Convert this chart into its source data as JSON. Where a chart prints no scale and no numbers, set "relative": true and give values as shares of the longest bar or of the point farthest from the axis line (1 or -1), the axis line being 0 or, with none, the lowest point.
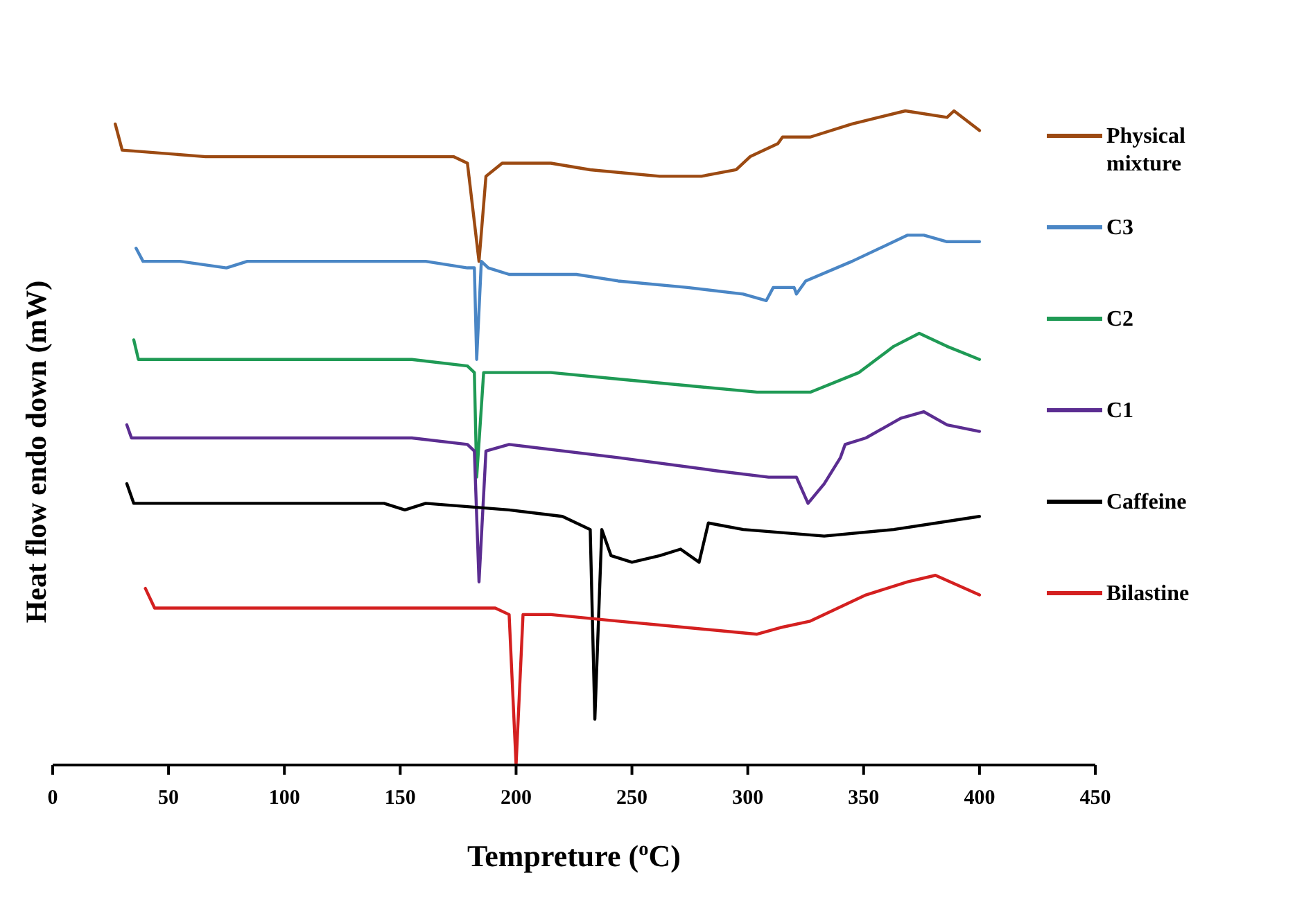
{
  "chart_data": {
    "type": "line",
    "relative": true,
    "xlabel": "Tempreture ($^{o}$C)",
    "ylabel": "Heat flow endo down (mW)",
    "xlim": [
      0,
      450
    ],
    "xticks": [
      0,
      50,
      100,
      150,
      200,
      250,
      300,
      350,
      400,
      450
    ],
    "legend": "right",
    "grid": false,
    "marker": "none",
    "line_style": "solid",
    "series": [
      {
        "name": "Physical mixture",
        "color": "#9c4a12",
        "x": [
          27,
          30,
          66,
          155,
          173,
          179,
          184,
          187,
          194,
          215,
          232,
          262,
          280,
          295,
          301,
          313,
          315,
          327,
          345,
          368,
          386,
          389,
          400
        ],
        "values": [
          0.98,
          0.94,
          0.93,
          0.93,
          0.93,
          0.92,
          0.77,
          0.9,
          0.92,
          0.92,
          0.91,
          0.9,
          0.9,
          0.91,
          0.93,
          0.95,
          0.96,
          0.96,
          0.98,
          1.0,
          0.99,
          1.0,
          0.97
        ]
      },
      {
        "name": "C3",
        "color": "#4a86c5",
        "x": [
          36,
          39,
          55,
          75,
          84,
          126,
          161,
          179,
          182,
          183,
          185,
          188,
          197,
          209,
          226,
          244,
          274,
          298,
          308,
          311,
          320,
          321,
          325,
          345,
          369,
          376,
          386,
          400
        ],
        "values": [
          0.79,
          0.77,
          0.77,
          0.76,
          0.77,
          0.77,
          0.77,
          0.76,
          0.76,
          0.62,
          0.77,
          0.76,
          0.75,
          0.75,
          0.75,
          0.74,
          0.73,
          0.72,
          0.71,
          0.73,
          0.73,
          0.72,
          0.74,
          0.77,
          0.81,
          0.81,
          0.8,
          0.8
        ]
      },
      {
        "name": "C2",
        "color": "#1f9a55",
        "x": [
          35,
          37,
          96,
          155,
          179,
          182,
          183,
          186,
          215,
          244,
          274,
          304,
          327,
          348,
          363,
          374,
          386,
          400
        ],
        "values": [
          0.65,
          0.62,
          0.62,
          0.62,
          0.61,
          0.6,
          0.44,
          0.6,
          0.6,
          0.59,
          0.58,
          0.57,
          0.57,
          0.6,
          0.64,
          0.66,
          0.64,
          0.62
        ]
      },
      {
        "name": "C1",
        "color": "#5b2d91",
        "x": [
          32,
          34,
          66,
          96,
          155,
          179,
          182,
          184,
          187,
          197,
          244,
          286,
          309,
          321,
          326,
          333,
          340,
          342,
          351,
          366,
          376,
          386,
          400
        ],
        "values": [
          0.52,
          0.5,
          0.5,
          0.5,
          0.5,
          0.49,
          0.48,
          0.28,
          0.48,
          0.49,
          0.47,
          0.45,
          0.44,
          0.44,
          0.4,
          0.43,
          0.47,
          0.49,
          0.5,
          0.53,
          0.54,
          0.52,
          0.51
        ]
      },
      {
        "name": "Caffeine",
        "color": "#000000",
        "x": [
          32,
          35,
          66,
          143,
          152,
          161,
          197,
          220,
          232,
          234,
          237,
          241,
          250,
          262,
          271,
          279,
          283,
          298,
          333,
          363,
          400
        ],
        "values": [
          0.43,
          0.4,
          0.4,
          0.4,
          0.39,
          0.4,
          0.39,
          0.38,
          0.36,
          0.07,
          0.36,
          0.32,
          0.31,
          0.32,
          0.33,
          0.31,
          0.37,
          0.36,
          0.35,
          0.36,
          0.38
        ]
      },
      {
        "name": "Bilastine",
        "color": "#d42020",
        "x": [
          40,
          44,
          96,
          155,
          191,
          197,
          200,
          203,
          215,
          244,
          274,
          304,
          314,
          327,
          351,
          369,
          381,
          400
        ],
        "values": [
          0.27,
          0.24,
          0.24,
          0.24,
          0.24,
          0.23,
          0,
          0.23,
          0.23,
          0.22,
          0.21,
          0.2,
          0.21,
          0.22,
          0.26,
          0.28,
          0.29,
          0.26
        ]
      }
    ]
  }
}
